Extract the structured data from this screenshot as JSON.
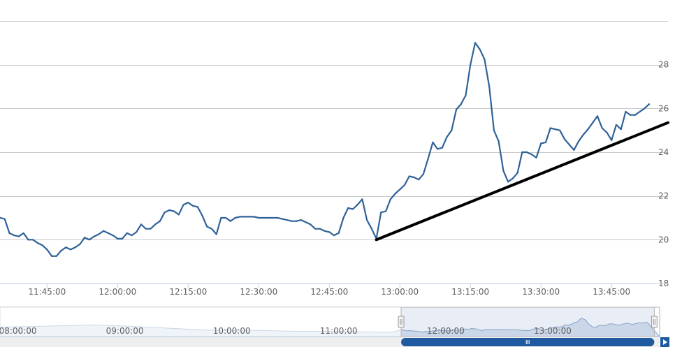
{
  "chart_data": {
    "type": "line",
    "title": "",
    "xlabel": "",
    "ylabel": "",
    "ylim": [
      18,
      30
    ],
    "yticks": [
      18,
      20,
      22,
      24,
      26,
      28
    ],
    "xlim": [
      "11:35",
      "13:57"
    ],
    "xticks": [
      "11:45:00",
      "12:00:00",
      "12:15:00",
      "12:30:00",
      "12:45:00",
      "13:00:00",
      "13:15:00",
      "13:30:00",
      "13:45:00"
    ],
    "grid": true,
    "series": [
      {
        "color": "#2f6298",
        "points": [
          [
            "11:35",
            21.0
          ],
          [
            "11:36",
            20.95
          ],
          [
            "11:37",
            20.3
          ],
          [
            "11:38",
            20.2
          ],
          [
            "11:39",
            20.15
          ],
          [
            "11:40",
            20.3
          ],
          [
            "11:41",
            20.0
          ],
          [
            "11:42",
            20.0
          ],
          [
            "11:43",
            19.85
          ],
          [
            "11:44",
            19.75
          ],
          [
            "11:45",
            19.55
          ],
          [
            "11:46",
            19.25
          ],
          [
            "11:47",
            19.25
          ],
          [
            "11:48",
            19.5
          ],
          [
            "11:49",
            19.65
          ],
          [
            "11:50",
            19.55
          ],
          [
            "11:51",
            19.65
          ],
          [
            "11:52",
            19.8
          ],
          [
            "11:53",
            20.1
          ],
          [
            "11:54",
            20.0
          ],
          [
            "11:55",
            20.15
          ],
          [
            "11:56",
            20.25
          ],
          [
            "11:57",
            20.4
          ],
          [
            "11:58",
            20.3
          ],
          [
            "11:59",
            20.2
          ],
          [
            "12:00",
            20.05
          ],
          [
            "12:01",
            20.05
          ],
          [
            "12:02",
            20.3
          ],
          [
            "12:03",
            20.2
          ],
          [
            "12:04",
            20.35
          ],
          [
            "12:05",
            20.7
          ],
          [
            "12:06",
            20.5
          ],
          [
            "12:07",
            20.5
          ],
          [
            "12:08",
            20.7
          ],
          [
            "12:09",
            20.85
          ],
          [
            "12:10",
            21.25
          ],
          [
            "12:11",
            21.35
          ],
          [
            "12:12",
            21.3
          ],
          [
            "12:13",
            21.15
          ],
          [
            "12:14",
            21.6
          ],
          [
            "12:15",
            21.7
          ],
          [
            "12:16",
            21.55
          ],
          [
            "12:17",
            21.5
          ],
          [
            "12:18",
            21.1
          ],
          [
            "12:19",
            20.6
          ],
          [
            "12:20",
            20.5
          ],
          [
            "12:21",
            20.25
          ],
          [
            "12:22",
            21.0
          ],
          [
            "12:23",
            21.0
          ],
          [
            "12:24",
            20.85
          ],
          [
            "12:25",
            21.0
          ],
          [
            "12:26",
            21.05
          ],
          [
            "12:27",
            21.05
          ],
          [
            "12:28",
            21.05
          ],
          [
            "12:29",
            21.05
          ],
          [
            "12:30",
            21.0
          ],
          [
            "12:31",
            21.0
          ],
          [
            "12:32",
            21.0
          ],
          [
            "12:33",
            21.0
          ],
          [
            "12:34",
            21.0
          ],
          [
            "12:35",
            20.95
          ],
          [
            "12:36",
            20.9
          ],
          [
            "12:37",
            20.85
          ],
          [
            "12:38",
            20.85
          ],
          [
            "12:39",
            20.9
          ],
          [
            "12:40",
            20.8
          ],
          [
            "12:41",
            20.7
          ],
          [
            "12:42",
            20.5
          ],
          [
            "12:43",
            20.5
          ],
          [
            "12:44",
            20.4
          ],
          [
            "12:45",
            20.35
          ],
          [
            "12:46",
            20.2
          ],
          [
            "12:47",
            20.3
          ],
          [
            "12:48",
            21.0
          ],
          [
            "12:49",
            21.45
          ],
          [
            "12:50",
            21.4
          ],
          [
            "12:51",
            21.6
          ],
          [
            "12:52",
            21.85
          ],
          [
            "12:53",
            20.9
          ],
          [
            "12:54",
            20.5
          ],
          [
            "12:55",
            20.05
          ],
          [
            "12:56",
            21.25
          ],
          [
            "12:57",
            21.3
          ],
          [
            "12:58",
            21.85
          ],
          [
            "12:59",
            22.1
          ],
          [
            "13:00",
            22.3
          ],
          [
            "13:01",
            22.5
          ],
          [
            "13:02",
            22.9
          ],
          [
            "13:03",
            22.85
          ],
          [
            "13:04",
            22.75
          ],
          [
            "13:05",
            23.0
          ],
          [
            "13:06",
            23.7
          ],
          [
            "13:07",
            24.45
          ],
          [
            "13:08",
            24.15
          ],
          [
            "13:09",
            24.2
          ],
          [
            "13:10",
            24.7
          ],
          [
            "13:11",
            25.0
          ],
          [
            "13:12",
            25.95
          ],
          [
            "13:13",
            26.2
          ],
          [
            "13:14",
            26.6
          ],
          [
            "13:15",
            28.0
          ],
          [
            "13:16",
            29.0
          ],
          [
            "13:17",
            28.7
          ],
          [
            "13:18",
            28.25
          ],
          [
            "13:19",
            27.0
          ],
          [
            "13:20",
            25.0
          ],
          [
            "13:21",
            24.5
          ],
          [
            "13:22",
            23.15
          ],
          [
            "13:23",
            22.65
          ],
          [
            "13:24",
            22.8
          ],
          [
            "13:25",
            23.05
          ],
          [
            "13:26",
            24.0
          ],
          [
            "13:27",
            24.0
          ],
          [
            "13:28",
            23.9
          ],
          [
            "13:29",
            23.75
          ],
          [
            "13:30",
            24.4
          ],
          [
            "13:31",
            24.45
          ],
          [
            "13:32",
            25.1
          ],
          [
            "13:33",
            25.05
          ],
          [
            "13:34",
            25.0
          ],
          [
            "13:35",
            24.6
          ],
          [
            "13:36",
            24.35
          ],
          [
            "13:37",
            24.1
          ],
          [
            "13:38",
            24.5
          ],
          [
            "13:39",
            24.8
          ],
          [
            "13:40",
            25.05
          ],
          [
            "13:41",
            25.35
          ],
          [
            "13:42",
            25.65
          ],
          [
            "13:43",
            25.1
          ],
          [
            "13:44",
            24.9
          ],
          [
            "13:45",
            24.55
          ],
          [
            "13:46",
            25.25
          ],
          [
            "13:47",
            25.05
          ],
          [
            "13:48",
            25.85
          ],
          [
            "13:49",
            25.7
          ],
          [
            "13:50",
            25.7
          ],
          [
            "13:51",
            25.85
          ],
          [
            "13:52",
            26.0
          ],
          [
            "13:53",
            26.2
          ]
        ]
      }
    ],
    "annotations": [
      {
        "type": "trend-line",
        "color": "#000000",
        "from": [
          "12:55",
          20.0
        ],
        "to": [
          "13:57",
          25.35
        ]
      }
    ],
    "navigator": {
      "xticks": [
        "08:00:00",
        "09:00:00",
        "10:00:00",
        "11:00:00",
        "12:00:00",
        "13:00:00"
      ],
      "selected_range": [
        "11:35",
        "13:57"
      ]
    }
  }
}
